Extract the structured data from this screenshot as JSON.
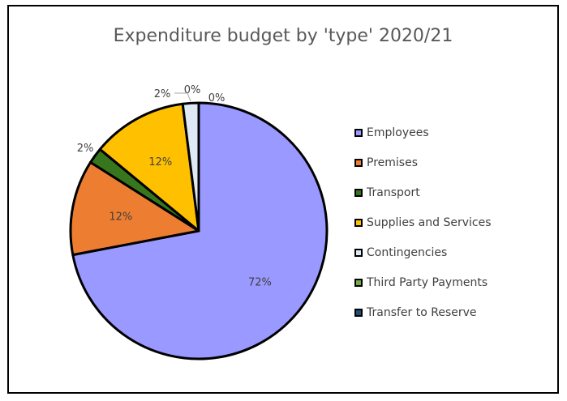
{
  "chart_data": {
    "type": "pie",
    "title": "Expenditure budget by 'type' 2020/21",
    "categories": [
      "Employees",
      "Premises",
      "Transport",
      "Supplies and Services",
      "Contingencies",
      "Third Party Payments",
      "Transfer to Reserve"
    ],
    "values": [
      72,
      12,
      2,
      12,
      2,
      0,
      0
    ],
    "data_labels": [
      "72%",
      "12%",
      "2%",
      "12%",
      "2%",
      "0%",
      "0%"
    ],
    "legend": {
      "position": "right",
      "labels": [
        "Employees",
        "Premises",
        "Transport",
        "Supplies and Services",
        "Contingencies",
        "Third Party Payments",
        "Transfer to Reserve"
      ]
    },
    "colors": [
      "#9999ff",
      "#ed7d31",
      "#38761d",
      "#ffc000",
      "#dee9f5",
      "#70ad47",
      "#1f4e79"
    ]
  }
}
